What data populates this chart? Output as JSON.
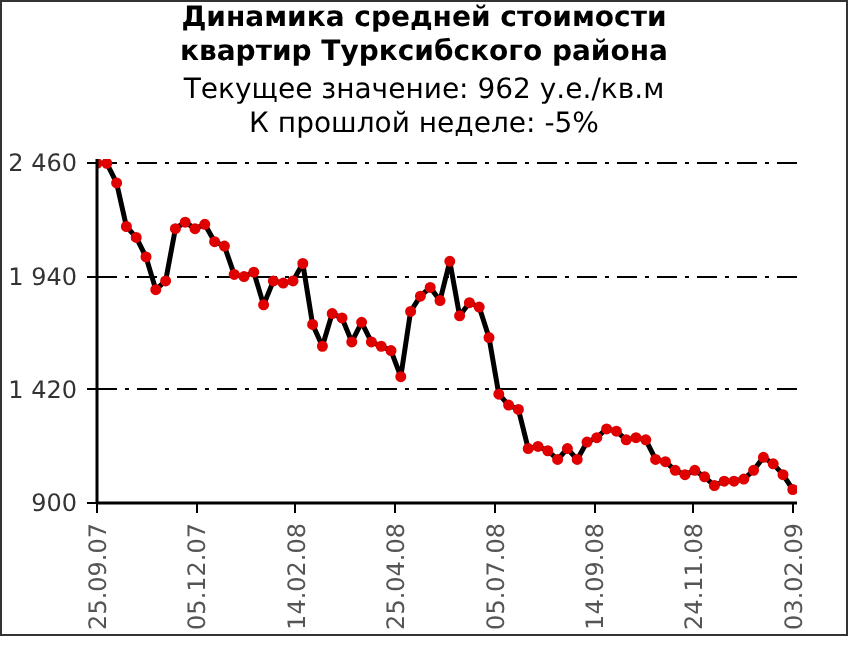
{
  "chart_data": {
    "type": "line",
    "title": "Динамика средней стоимости\nквартир Турксибского района",
    "subtitle": "Текущее значение: 962 у.е./кв.м\nК прошлой неделе: -5%",
    "x": [
      "2007-09-25",
      "2007-10-02",
      "2007-10-09",
      "2007-10-16",
      "2007-10-23",
      "2007-10-30",
      "2007-11-06",
      "2007-11-13",
      "2007-11-20",
      "2007-11-27",
      "2007-12-04",
      "2007-12-11",
      "2007-12-18",
      "2007-12-25",
      "2008-01-01",
      "2008-01-08",
      "2008-01-15",
      "2008-01-22",
      "2008-01-29",
      "2008-02-05",
      "2008-02-12",
      "2008-02-19",
      "2008-02-26",
      "2008-03-04",
      "2008-03-11",
      "2008-03-18",
      "2008-03-25",
      "2008-04-01",
      "2008-04-08",
      "2008-04-15",
      "2008-04-22",
      "2008-04-29",
      "2008-05-06",
      "2008-05-13",
      "2008-05-20",
      "2008-05-27",
      "2008-06-03",
      "2008-06-10",
      "2008-06-17",
      "2008-06-24",
      "2008-07-01",
      "2008-07-08",
      "2008-07-15",
      "2008-07-22",
      "2008-07-29",
      "2008-08-05",
      "2008-08-12",
      "2008-08-19",
      "2008-08-26",
      "2008-09-02",
      "2008-09-09",
      "2008-09-16",
      "2008-09-23",
      "2008-09-30",
      "2008-10-07",
      "2008-10-14",
      "2008-10-21",
      "2008-10-28",
      "2008-11-04",
      "2008-11-11",
      "2008-11-18",
      "2008-11-25",
      "2008-12-02",
      "2008-12-09",
      "2008-12-16",
      "2008-12-23",
      "2008-12-30",
      "2009-01-06",
      "2009-01-13",
      "2009-01-20",
      "2009-01-27",
      "2009-02-03"
    ],
    "series": [
      {
        "color": "#000000",
        "marker": "none",
        "values": [
          2460,
          2460,
          2370,
          2170,
          2120,
          2030,
          1880,
          1920,
          2160,
          2190,
          2160,
          2180,
          2100,
          2080,
          1950,
          1940,
          1960,
          1810,
          1920,
          1910,
          1920,
          2000,
          1720,
          1620,
          1770,
          1750,
          1640,
          1730,
          1640,
          1620,
          1600,
          1480,
          1780,
          1850,
          1890,
          1830,
          2010,
          1760,
          1820,
          1800,
          1660,
          1400,
          1350,
          1330,
          1150,
          1160,
          1140,
          1100,
          1150,
          1100,
          1180,
          1200,
          1240,
          1230,
          1190,
          1200,
          1190,
          1100,
          1090,
          1050,
          1030,
          1050,
          1020,
          980,
          1000,
          1000,
          1010,
          1050,
          1110,
          1080,
          1030,
          962
        ]
      },
      {
        "type": "scatter",
        "marker": "circle",
        "color": "#e00000",
        "values": [
          2460,
          2460,
          2370,
          2170,
          2120,
          2030,
          1880,
          1920,
          2160,
          2190,
          2160,
          2180,
          2100,
          2080,
          1950,
          1940,
          1960,
          1810,
          1920,
          1910,
          1920,
          2000,
          1720,
          1620,
          1770,
          1750,
          1640,
          1730,
          1640,
          1620,
          1600,
          1480,
          1780,
          1850,
          1890,
          1830,
          2010,
          1760,
          1820,
          1800,
          1660,
          1400,
          1350,
          1330,
          1150,
          1160,
          1140,
          1100,
          1150,
          1100,
          1180,
          1200,
          1240,
          1230,
          1190,
          1200,
          1190,
          1100,
          1090,
          1050,
          1030,
          1050,
          1020,
          980,
          1000,
          1000,
          1010,
          1050,
          1110,
          1080,
          1030,
          962
        ]
      }
    ],
    "xlim": [
      "2007-09-25",
      "2009-02-06"
    ],
    "ylim": [
      900,
      2480
    ],
    "xticks": [
      {
        "value": "2007-09-25",
        "label": "25.09.07"
      },
      {
        "value": "2007-12-05",
        "label": "05.12.07"
      },
      {
        "value": "2008-02-14",
        "label": "14.02.08"
      },
      {
        "value": "2008-04-25",
        "label": "25.04.08"
      },
      {
        "value": "2008-07-05",
        "label": "05.07.08"
      },
      {
        "value": "2008-09-14",
        "label": "14.09.08"
      },
      {
        "value": "2008-11-24",
        "label": "24.11.08"
      },
      {
        "value": "2009-02-03",
        "label": "03.02.09"
      }
    ],
    "yticks": [
      {
        "value": 900,
        "label": "900"
      },
      {
        "value": 1420,
        "label": "1 420"
      },
      {
        "value": 1940,
        "label": "1 940"
      },
      {
        "value": 2460,
        "label": "2 460"
      }
    ],
    "grid": "y",
    "line_style": "solid"
  }
}
